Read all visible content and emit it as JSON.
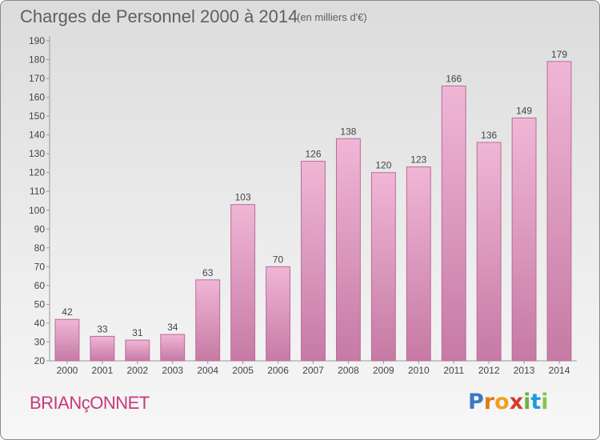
{
  "title": "Charges de Personnel 2000 à 2014",
  "subtitle": "(en milliers d'€)",
  "commune": "BRIANçONNET",
  "logo": {
    "letters": [
      "P",
      "r",
      "o",
      "x",
      "i",
      "t",
      "i"
    ],
    "colors": [
      "#3b78c2",
      "#e07a1a",
      "#f0a21d",
      "#d63a2a",
      "#6cb33f",
      "#1e9bd7",
      "#8bc34a"
    ]
  },
  "colors": {
    "bar_light": "#f0b6d6",
    "bar_dark": "#c67aa4",
    "bar_stroke": "#b86c98",
    "axis": "#999999",
    "text": "#444444"
  },
  "chart_data": {
    "type": "bar",
    "categories": [
      "2000",
      "2001",
      "2002",
      "2003",
      "2004",
      "2005",
      "2006",
      "2007",
      "2008",
      "2009",
      "2010",
      "2011",
      "2012",
      "2013",
      "2014"
    ],
    "values": [
      42,
      33,
      31,
      34,
      63,
      103,
      70,
      126,
      138,
      120,
      123,
      166,
      136,
      149,
      179
    ],
    "ylim": [
      20,
      190
    ],
    "yticks": [
      20,
      30,
      40,
      50,
      60,
      70,
      80,
      90,
      100,
      110,
      120,
      130,
      140,
      150,
      160,
      170,
      180,
      190
    ],
    "grid": false,
    "data_labels": true
  }
}
